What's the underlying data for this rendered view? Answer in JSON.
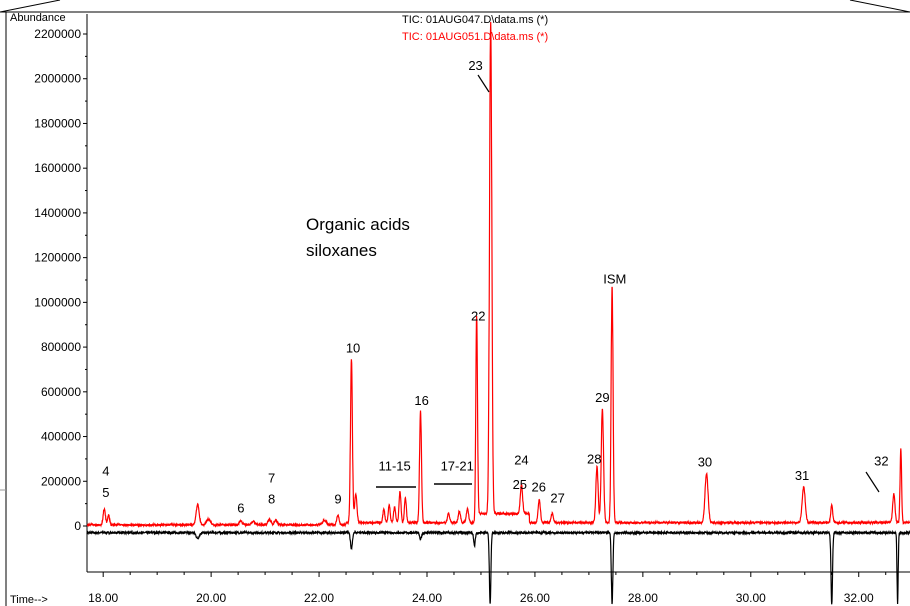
{
  "chart_data": {
    "type": "line",
    "ylabel": "Abundance",
    "xlabel": "Time-->",
    "xlim": [
      17.7,
      32.95
    ],
    "ylim": [
      -350000,
      2220000
    ],
    "x_ticks": [
      "18.00",
      "20.00",
      "22.00",
      "24.00",
      "26.00",
      "28.00",
      "30.00",
      "32.00"
    ],
    "x_tick_values": [
      18,
      20,
      22,
      24,
      26,
      28,
      30,
      32
    ],
    "y_ticks": [
      "0",
      "200000",
      "400000",
      "600000",
      "800000",
      "1000000",
      "1200000",
      "1400000",
      "1600000",
      "1800000",
      "2000000",
      "2200000"
    ],
    "y_tick_values": [
      0,
      200000,
      400000,
      600000,
      800000,
      1000000,
      1200000,
      1400000,
      1600000,
      1800000,
      2000000,
      2200000
    ],
    "series": [
      {
        "name": "TIC: 01AUG047.D\\data.ms (*)",
        "color": "#000000",
        "baseline": -30000,
        "peaks": [
          {
            "x": 19.75,
            "y": -55000,
            "w": 0.04
          },
          {
            "x": 22.6,
            "y": -100000,
            "w": 0.025
          },
          {
            "x": 23.88,
            "y": -60000,
            "w": 0.025
          },
          {
            "x": 24.88,
            "y": -90000,
            "w": 0.02
          },
          {
            "x": 25.17,
            "y": -350000,
            "w": 0.02
          },
          {
            "x": 27.43,
            "y": -350000,
            "w": 0.02
          },
          {
            "x": 31.5,
            "y": -350000,
            "w": 0.02
          },
          {
            "x": 32.72,
            "y": -350000,
            "w": 0.015
          }
        ]
      },
      {
        "name": "TIC: 01AUG051.D\\data.ms (*)",
        "color": "#ff0000",
        "baseline": 5000,
        "peaks": [
          {
            "x": 18.02,
            "y": 70000,
            "w": 0.03
          },
          {
            "x": 18.1,
            "y": 45000,
            "w": 0.025
          },
          {
            "x": 19.75,
            "y": 90000,
            "w": 0.04
          },
          {
            "x": 19.95,
            "y": 25000,
            "w": 0.05
          },
          {
            "x": 20.55,
            "y": 18000,
            "w": 0.04
          },
          {
            "x": 20.78,
            "y": 15000,
            "w": 0.05
          },
          {
            "x": 21.08,
            "y": 25000,
            "w": 0.04
          },
          {
            "x": 21.2,
            "y": 20000,
            "w": 0.04
          },
          {
            "x": 22.1,
            "y": 20000,
            "w": 0.05
          },
          {
            "x": 22.35,
            "y": 45000,
            "w": 0.03
          },
          {
            "x": 22.6,
            "y": 730000,
            "w": 0.025
          },
          {
            "x": 22.68,
            "y": 130000,
            "w": 0.03
          },
          {
            "x": 23.2,
            "y": 60000,
            "w": 0.025
          },
          {
            "x": 23.3,
            "y": 80000,
            "w": 0.025
          },
          {
            "x": 23.4,
            "y": 70000,
            "w": 0.025
          },
          {
            "x": 23.5,
            "y": 140000,
            "w": 0.025
          },
          {
            "x": 23.6,
            "y": 110000,
            "w": 0.025
          },
          {
            "x": 23.88,
            "y": 500000,
            "w": 0.025
          },
          {
            "x": 24.4,
            "y": 40000,
            "w": 0.03
          },
          {
            "x": 24.6,
            "y": 50000,
            "w": 0.03
          },
          {
            "x": 24.75,
            "y": 60000,
            "w": 0.03
          },
          {
            "x": 24.92,
            "y": 880000,
            "w": 0.022
          },
          {
            "x": 25.18,
            "y": 2200000,
            "w": 0.03
          },
          {
            "x": 25.75,
            "y": 130000,
            "w": 0.03
          },
          {
            "x": 26.08,
            "y": 100000,
            "w": 0.03
          },
          {
            "x": 26.32,
            "y": 40000,
            "w": 0.03
          },
          {
            "x": 27.15,
            "y": 250000,
            "w": 0.03
          },
          {
            "x": 27.25,
            "y": 510000,
            "w": 0.03
          },
          {
            "x": 27.43,
            "y": 1060000,
            "w": 0.025
          },
          {
            "x": 29.18,
            "y": 220000,
            "w": 0.04
          },
          {
            "x": 30.98,
            "y": 160000,
            "w": 0.04
          },
          {
            "x": 31.5,
            "y": 80000,
            "w": 0.025
          },
          {
            "x": 32.65,
            "y": 130000,
            "w": 0.03
          },
          {
            "x": 32.78,
            "y": 330000,
            "w": 0.02
          }
        ]
      }
    ],
    "annotations": [
      {
        "text": "4",
        "x": 18.05,
        "y": 225000
      },
      {
        "text": "5",
        "x": 18.05,
        "y": 130000
      },
      {
        "text": "6",
        "x": 20.55,
        "y": 60000
      },
      {
        "text": "7",
        "x": 21.12,
        "y": 195000
      },
      {
        "text": "8",
        "x": 21.12,
        "y": 100000
      },
      {
        "text": "9",
        "x": 22.35,
        "y": 100000
      },
      {
        "text": "10",
        "x": 22.63,
        "y": 775000
      },
      {
        "text": "11-15",
        "x": 23.4,
        "y": 248000
      },
      {
        "text": "16",
        "x": 23.9,
        "y": 540000
      },
      {
        "text": "17-21",
        "x": 24.56,
        "y": 248000
      },
      {
        "text": "22",
        "x": 24.95,
        "y": 920000
      },
      {
        "text": "23",
        "x": 24.9,
        "y": 2040000
      },
      {
        "text": "24",
        "x": 25.75,
        "y": 275000
      },
      {
        "text": "25",
        "x": 25.72,
        "y": 165000
      },
      {
        "text": "26",
        "x": 26.07,
        "y": 155000
      },
      {
        "text": "27",
        "x": 26.42,
        "y": 105000
      },
      {
        "text": "28",
        "x": 27.1,
        "y": 280000
      },
      {
        "text": "29",
        "x": 27.25,
        "y": 555000
      },
      {
        "text": "ISM",
        "x": 27.48,
        "y": 1085000
      },
      {
        "text": "30",
        "x": 29.15,
        "y": 265000
      },
      {
        "text": "31",
        "x": 30.95,
        "y": 205000
      },
      {
        "text": "32",
        "x": 32.42,
        "y": 270000
      }
    ],
    "text_annotations": [
      "Organic acids",
      "siloxanes"
    ]
  }
}
